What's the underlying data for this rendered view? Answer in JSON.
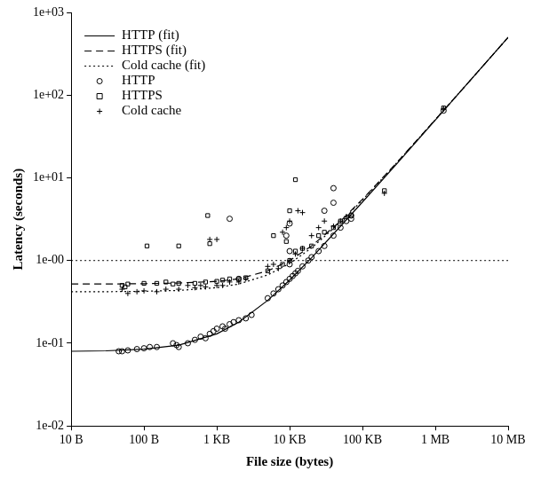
{
  "chart_data": {
    "type": "scatter",
    "log": true,
    "grid": false,
    "legend": "upper left",
    "x_label": "File size (bytes)",
    "y_label": "Latency (seconds)",
    "xlim": [
      10,
      10000000
    ],
    "ylim": [
      0.01,
      1000
    ],
    "xticks": [
      {
        "value": 10,
        "label": "10 B"
      },
      {
        "value": 100,
        "label": "100 B"
      },
      {
        "value": 1000,
        "label": "1 KB"
      },
      {
        "value": 10000,
        "label": "10 KB"
      },
      {
        "value": 100000,
        "label": "100 KB"
      },
      {
        "value": 1000000,
        "label": "1 MB"
      },
      {
        "value": 10000000,
        "label": "10 MB"
      }
    ],
    "yticks": [
      {
        "value": 0.01,
        "label": "1e-02"
      },
      {
        "value": 0.1,
        "label": "1e-01"
      },
      {
        "value": 1,
        "label": "1e-00"
      },
      {
        "value": 10,
        "label": "1e+01"
      },
      {
        "value": 100,
        "label": "1e+02"
      },
      {
        "value": 1000,
        "label": "1e+03"
      }
    ],
    "hline": 1,
    "series": [
      {
        "name": "HTTP (fit)",
        "type": "line",
        "line_style": "solid",
        "color": "#000000",
        "x": [
          10,
          30,
          100,
          300,
          1000,
          2000,
          5000,
          10000,
          20000,
          50000,
          100000,
          300000,
          1000000,
          3000000,
          10000000
        ],
        "values": [
          0.08,
          0.081,
          0.085,
          0.095,
          0.13,
          0.18,
          0.33,
          0.58,
          1.08,
          2.6,
          5.1,
          15,
          50,
          150,
          500
        ]
      },
      {
        "name": "HTTPS (fit)",
        "type": "line",
        "line_style": "dashed",
        "color": "#000000",
        "x": [
          10,
          30,
          100,
          300,
          1000,
          2000,
          5000,
          10000,
          20000,
          50000,
          100000,
          300000,
          1000000,
          3000000,
          10000000
        ],
        "values": [
          0.52,
          0.52,
          0.525,
          0.535,
          0.56,
          0.6,
          0.75,
          1.0,
          1.5,
          3.0,
          5.5,
          15.5,
          50.5,
          150,
          500
        ]
      },
      {
        "name": "Cold cache (fit)",
        "type": "line",
        "line_style": "dotted",
        "color": "#000000",
        "x": [
          10,
          30,
          100,
          300,
          1000,
          2000,
          5000,
          10000,
          20000,
          50000,
          100000,
          300000,
          1000000,
          3000000,
          10000000
        ],
        "values": [
          0.42,
          0.42,
          0.425,
          0.435,
          0.47,
          0.52,
          0.67,
          0.92,
          1.42,
          2.9,
          5.4,
          15.4,
          50.4,
          150,
          500
        ]
      },
      {
        "name": "HTTP",
        "type": "scatter",
        "marker": "circle",
        "color": "#000000",
        "x": [
          45,
          50,
          60,
          80,
          100,
          120,
          150,
          250,
          280,
          300,
          400,
          500,
          600,
          700,
          800,
          900,
          1000,
          1200,
          1300,
          1500,
          1700,
          2000,
          2500,
          3000,
          5000,
          6000,
          7000,
          8000,
          9000,
          10000,
          11000,
          12000,
          13000,
          15000,
          18000,
          20000,
          25000,
          30000,
          40000,
          50000,
          60000,
          70000,
          1300000,
          1500,
          10000,
          9000,
          40000,
          40000,
          30000,
          70000,
          2000,
          10000,
          10000
        ],
        "values": [
          0.08,
          0.08,
          0.082,
          0.085,
          0.087,
          0.09,
          0.09,
          0.1,
          0.095,
          0.09,
          0.1,
          0.11,
          0.12,
          0.115,
          0.13,
          0.14,
          0.15,
          0.16,
          0.15,
          0.17,
          0.18,
          0.19,
          0.2,
          0.22,
          0.35,
          0.4,
          0.45,
          0.5,
          0.55,
          0.6,
          0.65,
          0.7,
          0.75,
          0.85,
          1.0,
          1.1,
          1.3,
          1.5,
          2.0,
          2.5,
          3.0,
          3.2,
          65,
          3.2,
          2.8,
          2.0,
          7.5,
          5.0,
          4.0,
          3.5,
          0.6,
          0.9,
          1.3
        ]
      },
      {
        "name": "HTTPS",
        "type": "scatter",
        "marker": "square",
        "color": "#000000",
        "x": [
          50,
          55,
          60,
          100,
          110,
          150,
          200,
          250,
          300,
          300,
          500,
          700,
          750,
          800,
          1000,
          1200,
          1500,
          2000,
          2500,
          5000,
          6000,
          8000,
          10000,
          12000,
          12000,
          15000,
          20000,
          25000,
          30000,
          40000,
          50000,
          70000,
          200000,
          1300000,
          9000,
          10000
        ],
        "values": [
          0.5,
          0.48,
          0.52,
          0.53,
          1.5,
          0.53,
          0.55,
          0.52,
          0.53,
          1.5,
          0.53,
          0.55,
          3.5,
          1.6,
          0.56,
          0.58,
          0.6,
          0.6,
          0.62,
          0.75,
          2.0,
          0.9,
          1.0,
          9.5,
          1.3,
          1.4,
          1.5,
          2.0,
          2.2,
          2.5,
          3.0,
          3.5,
          7.0,
          70,
          1.7,
          4.0
        ]
      },
      {
        "name": "Cold cache",
        "type": "scatter",
        "marker": "cross",
        "color": "#000000",
        "x": [
          50,
          60,
          80,
          100,
          150,
          200,
          300,
          400,
          500,
          600,
          700,
          800,
          1000,
          1000,
          1200,
          1500,
          2000,
          2500,
          5000,
          6000,
          7000,
          8000,
          9000,
          10000,
          10000,
          12000,
          13000,
          15000,
          15000,
          20000,
          25000,
          30000,
          40000,
          50000,
          60000,
          200000,
          1300000
        ],
        "values": [
          0.45,
          0.4,
          0.42,
          0.43,
          0.42,
          0.45,
          0.45,
          0.5,
          0.47,
          0.5,
          0.48,
          1.8,
          1.8,
          0.5,
          0.5,
          0.55,
          0.55,
          0.6,
          0.85,
          0.9,
          0.8,
          2.2,
          2.5,
          1.0,
          3.0,
          1.2,
          4.0,
          1.4,
          3.8,
          2.0,
          2.5,
          3.0,
          2.6,
          3.0,
          3.4,
          6.5,
          68
        ]
      }
    ]
  }
}
